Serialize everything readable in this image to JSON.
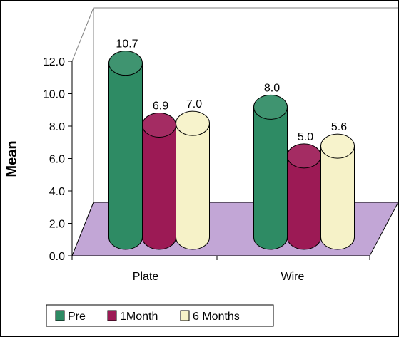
{
  "chart_data": {
    "type": "bar",
    "style": "3d-cylinder",
    "categories": [
      "Plate",
      "Wire"
    ],
    "series": [
      {
        "name": "Pre",
        "values": [
          10.7,
          8.0
        ],
        "color": "#2e8b64"
      },
      {
        "name": "1Month",
        "values": [
          6.9,
          5.0
        ],
        "color": "#9c1a55"
      },
      {
        "name": "6 Months",
        "values": [
          7.0,
          5.6
        ],
        "color": "#f6f2c8"
      }
    ],
    "data_labels": [
      [
        "10.7",
        "8.0"
      ],
      [
        "6.9",
        "5.0"
      ],
      [
        "7.0",
        "5.6"
      ]
    ],
    "ylabel": "Mean",
    "xlabel": "",
    "ylim": [
      0,
      12
    ],
    "yticks": [
      "0.0",
      "2.0",
      "4.0",
      "6.0",
      "8.0",
      "10.0",
      "12.0"
    ],
    "floor_color": "#c2a6d6",
    "legend_position": "bottom",
    "grid": false
  }
}
